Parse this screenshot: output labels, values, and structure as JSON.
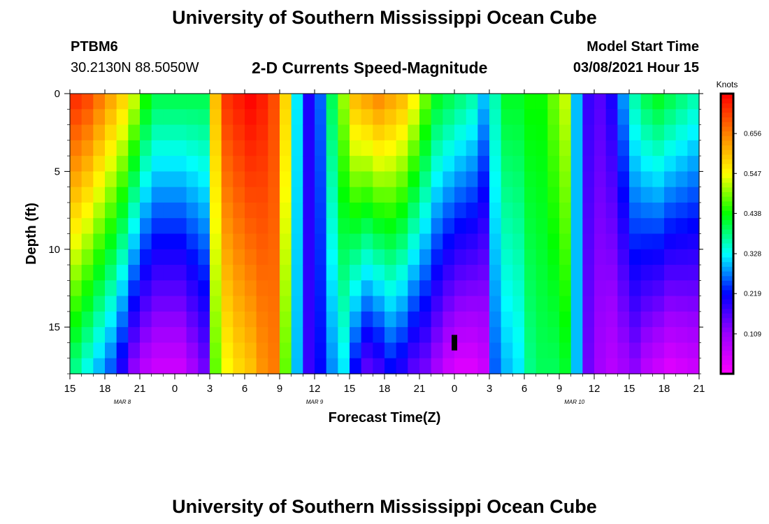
{
  "title": "University of Southern Mississippi Ocean Cube",
  "footer_title": "University of Southern Mississippi Ocean Cube",
  "station": {
    "name": "PTBM6",
    "coords": "30.2130N 88.5050W"
  },
  "model_start": {
    "label": "Model Start Time",
    "value": "03/08/2021 Hour 15"
  },
  "chart_data": {
    "type": "heatmap",
    "title": "2-D Currents Speed-Magnitude",
    "xlabel": "Forecast Time(Z)",
    "ylabel": "Depth (ft)",
    "x_tick_labels": [
      "15",
      "18",
      "21",
      "0",
      "3",
      "6",
      "9",
      "12",
      "15",
      "18",
      "21",
      "0",
      "3",
      "6",
      "9",
      "12",
      "15",
      "18",
      "21"
    ],
    "x_tick_hours": [
      0,
      3,
      6,
      9,
      12,
      15,
      18,
      21,
      24,
      27,
      30,
      33,
      36,
      39,
      42,
      45,
      48,
      51,
      54
    ],
    "date_labels": [
      {
        "text": "MAR 8",
        "hour": 4.5
      },
      {
        "text": "MAR 9",
        "hour": 21
      },
      {
        "text": "MAR 10",
        "hour": 43.3
      }
    ],
    "y_ticks": [
      0,
      5,
      10,
      15
    ],
    "ylim": [
      0,
      18
    ],
    "xlim": [
      0,
      54
    ],
    "colorbar": {
      "title": "Knots",
      "ticks": [
        0.109,
        0.219,
        0.328,
        0.438,
        0.547,
        0.656
      ],
      "range": [
        0,
        0.765
      ],
      "colors": [
        "#ff00ff",
        "#9c00ff",
        "#0000ff",
        "#00ffff",
        "#00ff00",
        "#ffff00",
        "#ff8000",
        "#ff0000"
      ]
    },
    "depth_levels_ft": [
      0,
      1,
      2,
      3,
      4,
      5,
      6,
      7,
      8,
      9,
      10,
      11,
      12,
      13,
      14,
      15,
      16,
      17
    ],
    "time_hours": [
      0,
      1,
      2,
      3,
      4,
      5,
      6,
      7,
      8,
      9,
      10,
      11,
      12,
      13,
      14,
      15,
      16,
      17,
      18,
      19,
      20,
      21,
      22,
      23,
      24,
      25,
      26,
      27,
      28,
      29,
      30,
      31,
      32,
      33,
      34,
      35,
      36,
      37,
      38,
      39,
      40,
      41,
      42,
      43,
      44,
      45,
      46,
      47,
      48,
      49,
      50,
      51,
      52,
      53
    ],
    "speed_knots_profiles": {
      "surface": [
        0.72,
        0.7,
        0.66,
        0.62,
        0.58,
        0.52,
        0.44,
        0.4,
        0.4,
        0.4,
        0.4,
        0.4,
        0.6,
        0.72,
        0.74,
        0.76,
        0.74,
        0.7,
        0.58,
        0.32,
        0.2,
        0.26,
        0.4,
        0.5,
        0.6,
        0.62,
        0.64,
        0.62,
        0.6,
        0.55,
        0.48,
        0.42,
        0.4,
        0.38,
        0.36,
        0.3,
        0.36,
        0.42,
        0.42,
        0.44,
        0.44,
        0.48,
        0.52,
        0.3,
        0.18,
        0.16,
        0.2,
        0.28,
        0.36,
        0.4,
        0.42,
        0.4,
        0.38,
        0.36
      ],
      "bottom": [
        0.38,
        0.34,
        0.3,
        0.26,
        0.2,
        0.12,
        0.08,
        0.06,
        0.06,
        0.06,
        0.1,
        0.14,
        0.48,
        0.55,
        0.58,
        0.6,
        0.64,
        0.66,
        0.48,
        0.3,
        0.18,
        0.22,
        0.28,
        0.32,
        0.22,
        0.16,
        0.18,
        0.22,
        0.2,
        0.16,
        0.14,
        0.1,
        0.06,
        0.04,
        0.04,
        0.06,
        0.26,
        0.3,
        0.32,
        0.38,
        0.4,
        0.4,
        0.42,
        0.3,
        0.14,
        0.1,
        0.08,
        0.1,
        0.12,
        0.08,
        0.06,
        0.04,
        0.05,
        0.06
      ]
    }
  }
}
